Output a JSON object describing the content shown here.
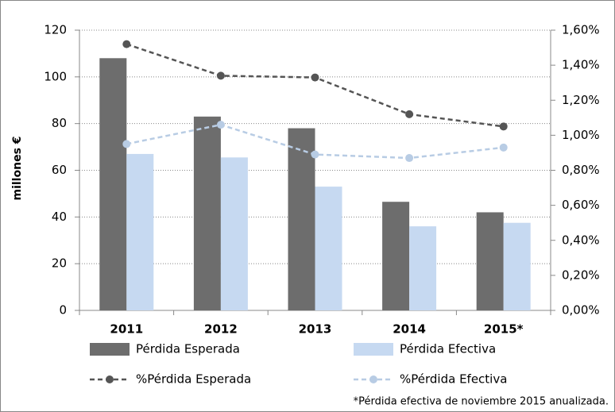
{
  "chart_data": {
    "type": "bar",
    "y_label": "millones €",
    "categories": [
      "2011",
      "2012",
      "2013",
      "2014",
      "2015*"
    ],
    "series": [
      {
        "name": "Pérdida Esperada",
        "color": "#6d6d6d",
        "values": [
          108,
          83,
          78,
          46.5,
          42
        ]
      },
      {
        "name": "Pérdida Efectiva",
        "color": "#c6d9f1",
        "values": [
          67,
          65.5,
          53,
          36,
          37.5
        ]
      },
      {
        "name": "%Pérdida Esperada",
        "color": "#555555",
        "type": "line",
        "axis": "y2",
        "values": [
          1.52,
          1.34,
          1.33,
          1.12,
          1.05
        ]
      },
      {
        "name": "%Pérdida Efectiva",
        "color": "#b8cce4",
        "type": "line",
        "axis": "y2",
        "values": [
          0.95,
          1.06,
          0.89,
          0.87,
          0.93
        ]
      }
    ],
    "ylim": [
      0,
      120
    ],
    "yticks": [
      0,
      20,
      40,
      60,
      80,
      100,
      120
    ],
    "y2lim": [
      0,
      1.6
    ],
    "y2ticks": [
      {
        "value": 0,
        "label": "0,00%"
      },
      {
        "value": 0.2,
        "label": "0,20%"
      },
      {
        "value": 0.4,
        "label": "0,40%"
      },
      {
        "value": 0.6,
        "label": "0,60%"
      },
      {
        "value": 0.8,
        "label": "0,80%"
      },
      {
        "value": 1.0,
        "label": "1,00%"
      },
      {
        "value": 1.2,
        "label": "1,20%"
      },
      {
        "value": 1.4,
        "label": "1,40%"
      },
      {
        "value": 1.6,
        "label": "1,60%"
      }
    ],
    "grid": true,
    "footnote": "*Pérdida efectiva de noviembre 2015  anualizada."
  }
}
